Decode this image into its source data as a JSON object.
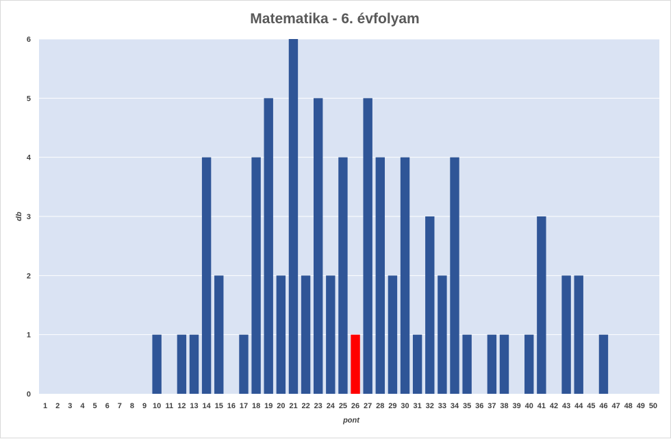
{
  "colors": {
    "plot_background": "#dae3f3",
    "bar": "#2f5597",
    "bar_highlight": "#ff0000",
    "gridline": "#ffffff",
    "text": "#404040",
    "title": "#595959"
  },
  "chart_data": {
    "type": "bar",
    "title": "Matematika - 6. évfolyam",
    "xlabel": "pont",
    "ylabel": "db",
    "ylim": [
      0,
      6
    ],
    "yticks": [
      0,
      1,
      2,
      3,
      4,
      5,
      6
    ],
    "grid": true,
    "highlight_category": "26",
    "categories": [
      "1",
      "2",
      "3",
      "4",
      "5",
      "6",
      "7",
      "8",
      "9",
      "10",
      "11",
      "12",
      "13",
      "14",
      "15",
      "16",
      "17",
      "18",
      "19",
      "20",
      "21",
      "22",
      "23",
      "24",
      "25",
      "26",
      "27",
      "28",
      "29",
      "30",
      "31",
      "32",
      "33",
      "34",
      "35",
      "36",
      "37",
      "38",
      "39",
      "40",
      "41",
      "42",
      "43",
      "44",
      "45",
      "46",
      "47",
      "48",
      "49",
      "50"
    ],
    "values": [
      0,
      0,
      0,
      0,
      0,
      0,
      0,
      0,
      0,
      1,
      0,
      1,
      1,
      4,
      2,
      0,
      1,
      4,
      5,
      2,
      6,
      2,
      5,
      2,
      4,
      1,
      5,
      4,
      2,
      4,
      1,
      3,
      2,
      4,
      1,
      0,
      1,
      1,
      0,
      1,
      3,
      0,
      2,
      2,
      0,
      1,
      0,
      0,
      0,
      0
    ]
  }
}
